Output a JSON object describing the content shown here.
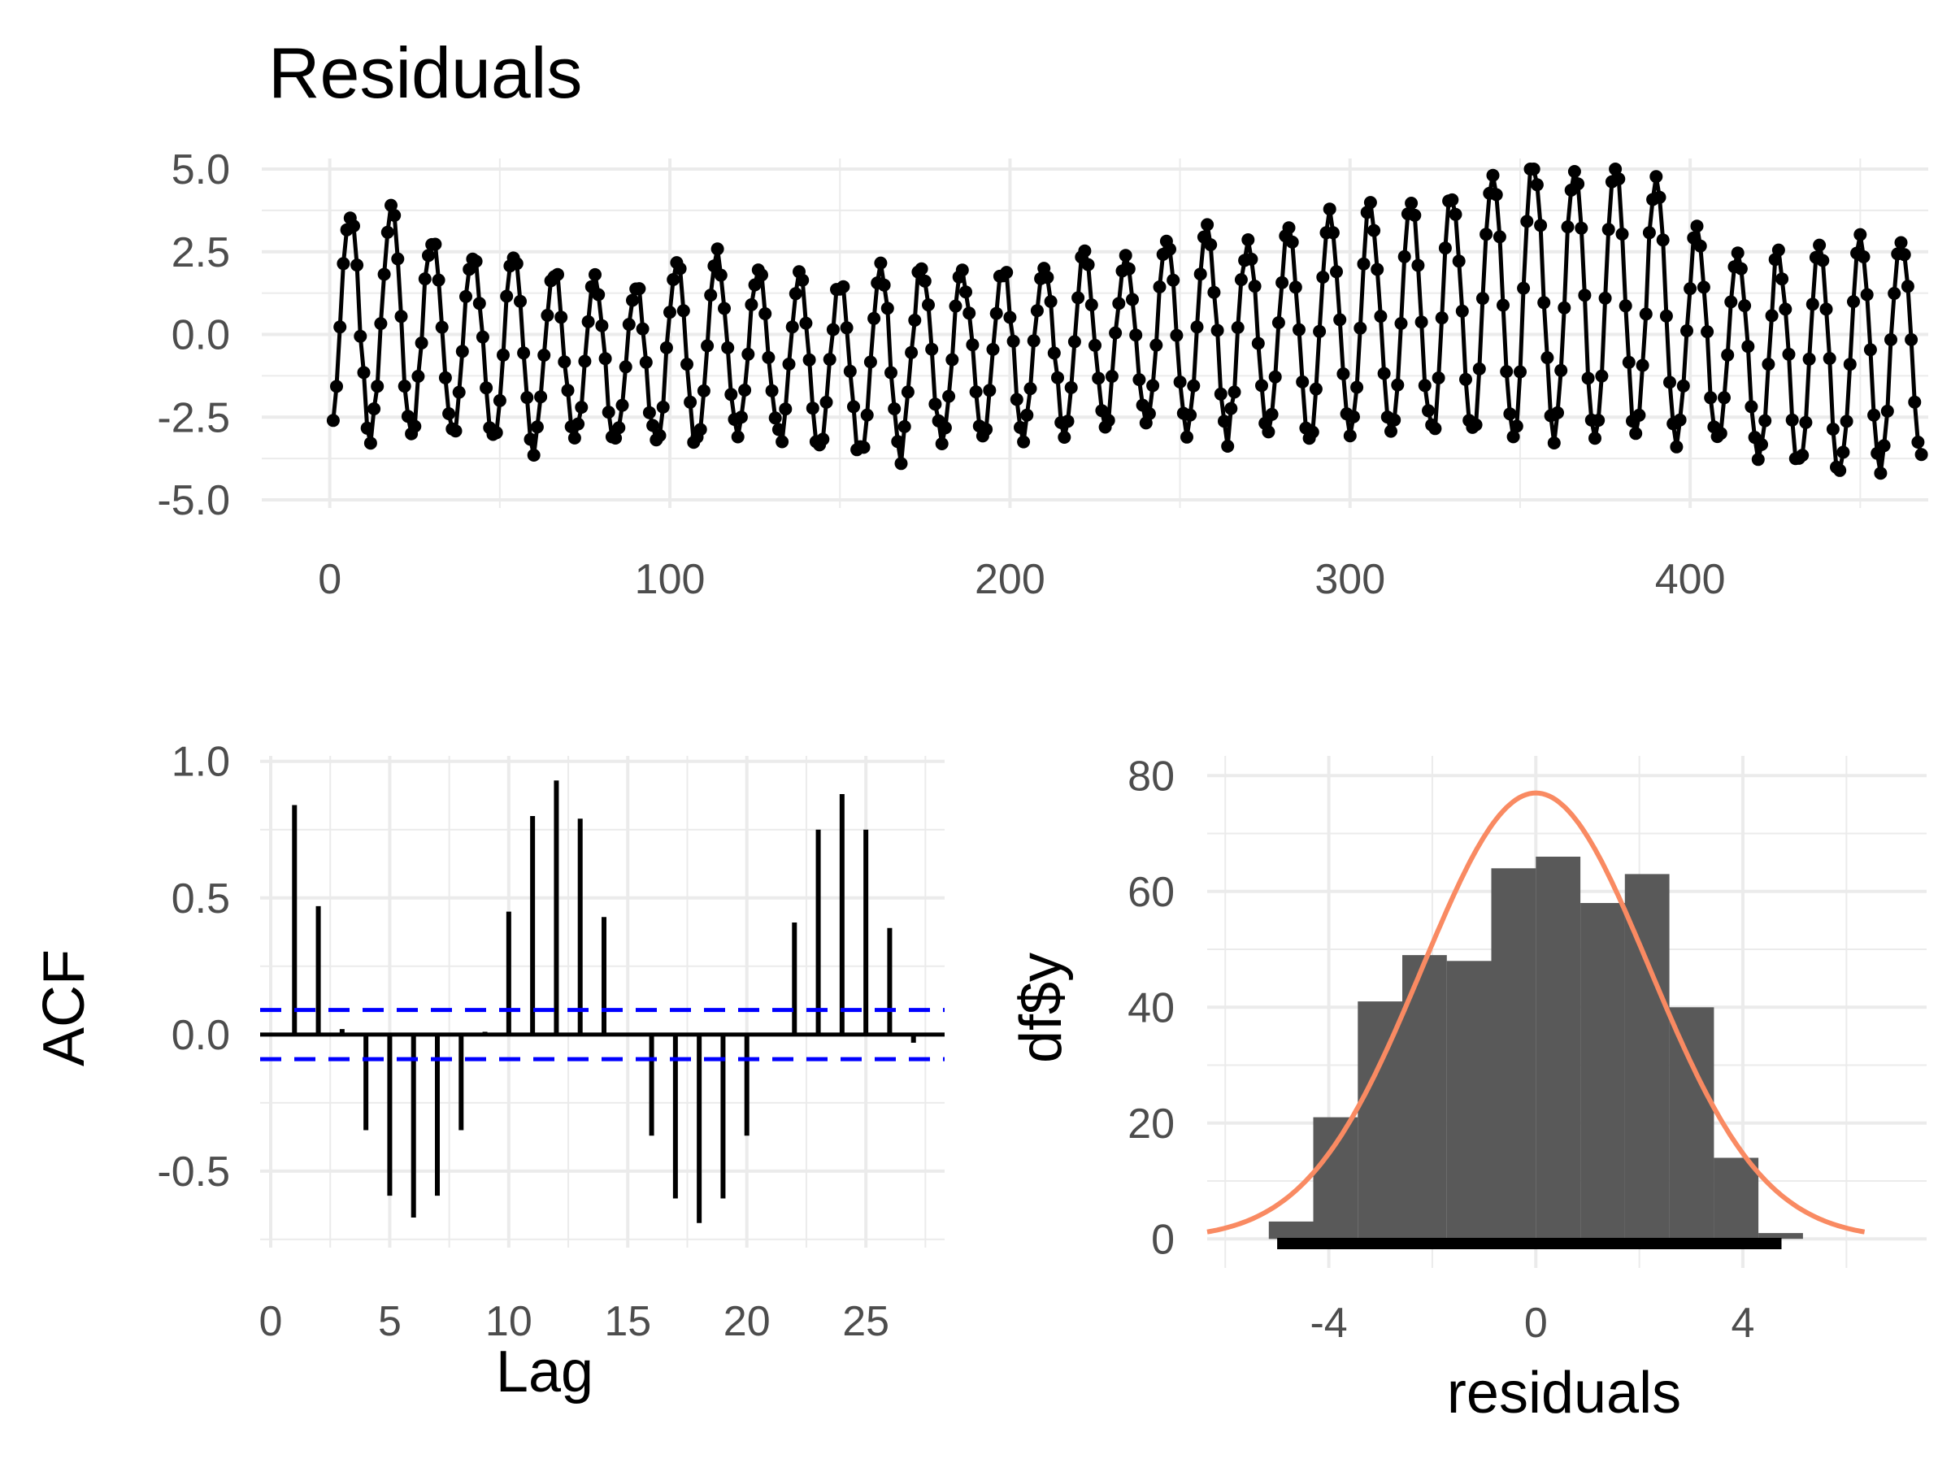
{
  "chart_data": [
    {
      "type": "line",
      "title": "Residuals",
      "xlabel": "",
      "ylabel": "",
      "xlim": [
        -20,
        470
      ],
      "ylim": [
        -5,
        5
      ],
      "x_ticks": [
        0,
        100,
        200,
        300,
        400
      ],
      "x_tick_labels": [
        "0",
        "100",
        "200",
        "300",
        "400"
      ],
      "y_ticks": [
        5,
        2.5,
        0,
        -2.5,
        -5
      ],
      "y_tick_labels": [
        "5.0",
        "2.5",
        "0.0",
        "-2.5",
        "-5.0"
      ],
      "n_points": 468,
      "period": 12,
      "cycle_amplitudes": [
        3.3,
        3.4,
        3.0,
        2.7,
        2.9,
        2.6,
        2.5,
        2.4,
        2.8,
        2.7,
        2.5,
        2.6,
        2.6,
        2.8,
        2.6,
        2.4,
        2.5,
        2.6,
        2.6,
        2.6,
        2.9,
        3.1,
        2.9,
        3.1,
        3.3,
        3.5,
        3.5,
        3.7,
        3.9,
        4.2,
        4.2,
        4.3,
        4.0,
        3.3,
        3.1,
        3.2,
        3.5,
        3.6,
        3.4,
        3.3
      ],
      "cycle_offsets": [
        0.2,
        0.4,
        0.0,
        -0.3,
        -0.5,
        -0.6,
        -0.8,
        -0.9,
        -0.6,
        -0.4,
        -0.6,
        -0.8,
        -1.0,
        -0.9,
        -0.6,
        -0.5,
        -0.5,
        -0.3,
        -0.2,
        -0.1,
        -0.1,
        0.0,
        0.0,
        0.1,
        0.2,
        0.4,
        0.5,
        0.6,
        0.8,
        1.1,
        1.0,
        1.1,
        0.8,
        0.0,
        -0.4,
        -0.8,
        -0.9,
        -0.7,
        -0.4,
        -0.2
      ],
      "line_color": "#000000"
    },
    {
      "type": "bar",
      "xlabel": "Lag",
      "ylabel": "ACF",
      "xlim": [
        0,
        28
      ],
      "ylim": [
        -0.78,
        1.02
      ],
      "x_ticks": [
        0,
        5,
        10,
        15,
        20,
        25
      ],
      "x_tick_labels": [
        "0",
        "5",
        "10",
        "15",
        "20",
        "25"
      ],
      "y_ticks": [
        1.0,
        0.5,
        0.0,
        -0.5
      ],
      "y_tick_labels": [
        "1.0",
        "0.5",
        "0.0",
        "-0.5"
      ],
      "lags": [
        1,
        2,
        3,
        4,
        5,
        6,
        7,
        8,
        9,
        10,
        11,
        12,
        13,
        14,
        15,
        16,
        17,
        18,
        19,
        20,
        21,
        22,
        23,
        24,
        25,
        26,
        27
      ],
      "values": [
        0.84,
        0.47,
        0.02,
        -0.35,
        -0.59,
        -0.67,
        -0.59,
        -0.35,
        0.01,
        0.45,
        0.8,
        0.93,
        0.79,
        0.43,
        0.0,
        -0.37,
        -0.6,
        -0.69,
        -0.6,
        -0.37,
        0.0,
        0.41,
        0.75,
        0.88,
        0.75,
        0.39,
        -0.03
      ],
      "confidence_bound": 0.09,
      "bar_color": "#000000",
      "bound_color": "#0000ff"
    },
    {
      "type": "bar",
      "xlabel": "residuals",
      "ylabel": "df$y",
      "xlim": [
        -6.35,
        7.55
      ],
      "ylim": [
        -6,
        82
      ],
      "x_ticks": [
        -4,
        0,
        4
      ],
      "x_tick_labels": [
        "-4",
        "0",
        "4"
      ],
      "y_ticks": [
        0,
        20,
        40,
        60,
        80
      ],
      "y_tick_labels": [
        "0",
        "20",
        "40",
        "60",
        "80"
      ],
      "bin_width": 0.86,
      "bins_left": [
        -5.16,
        -4.3,
        -3.44,
        -2.58,
        -1.72,
        -0.86,
        0.0,
        0.86,
        1.72,
        2.58,
        3.44,
        4.3
      ],
      "counts": [
        3,
        21,
        41,
        49,
        48,
        64,
        66,
        58,
        63,
        40,
        14,
        1
      ],
      "density_curve": {
        "mean": 0.0,
        "sd": 2.2,
        "peak": 77
      },
      "bar_color": "#595959",
      "curve_color": "#f98a62",
      "rug_range": [
        -4.95,
        4.7
      ]
    }
  ]
}
